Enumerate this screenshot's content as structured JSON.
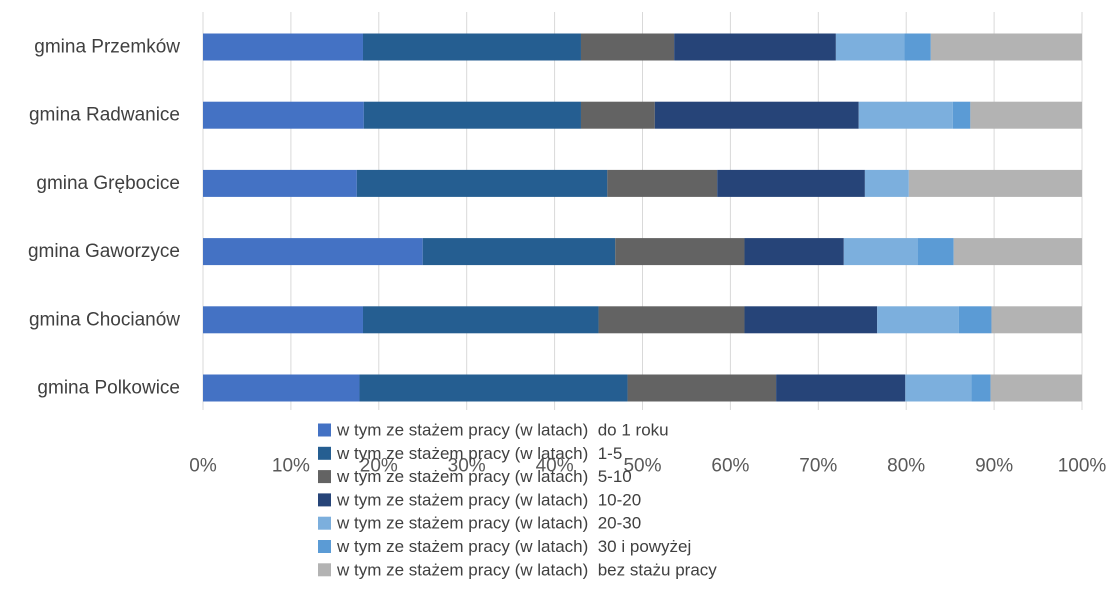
{
  "chart_data": {
    "type": "bar",
    "orientation": "horizontal",
    "stacked": "percent",
    "categories": [
      "gmina Przemków",
      "gmina Radwanice",
      "gmina Grębocice",
      "gmina Gaworzyce",
      "gmina Chocianów",
      "gmina Polkowice"
    ],
    "series": [
      {
        "name": "w tym ze stażem pracy (w latach)  do 1 roku",
        "color": "#4472C4",
        "values": [
          18.2,
          18.3,
          17.5,
          25.0,
          18.2,
          17.8
        ]
      },
      {
        "name": "w tym ze stażem pracy (w latach)  1-5",
        "color": "#255E91",
        "values": [
          24.8,
          24.7,
          28.5,
          21.9,
          26.8,
          30.5
        ]
      },
      {
        "name": "w tym ze stażem pracy (w latach)  5-10",
        "color": "#636363",
        "values": [
          10.6,
          8.4,
          12.5,
          14.7,
          16.6,
          16.9
        ]
      },
      {
        "name": "w tym ze stażem pracy (w latach)  10-20",
        "color": "#264478",
        "values": [
          18.4,
          23.2,
          16.8,
          11.3,
          15.1,
          14.7
        ]
      },
      {
        "name": "w tym ze stażem pracy (w latach)  20-30",
        "color": "#7CAFDD",
        "values": [
          7.8,
          10.7,
          5.0,
          8.4,
          9.3,
          7.5
        ]
      },
      {
        "name": "w tym ze stażem pracy (w latach)  30 i powyżej",
        "color": "#5B9BD5",
        "values": [
          3.0,
          2.0,
          0.0,
          4.1,
          3.7,
          2.2
        ]
      },
      {
        "name": "w tym ze stażem pracy (w latach)  bez stażu pracy",
        "color": "#B3B3B3",
        "values": [
          17.2,
          12.7,
          19.7,
          14.6,
          10.3,
          10.4
        ]
      }
    ],
    "xlim": [
      0,
      100
    ],
    "xticks": [
      "0%",
      "10%",
      "20%",
      "30%",
      "40%",
      "50%",
      "60%",
      "70%",
      "80%",
      "90%",
      "100%"
    ],
    "grid": true,
    "legend_position": "bottom",
    "title": "",
    "xlabel": "",
    "ylabel": ""
  }
}
